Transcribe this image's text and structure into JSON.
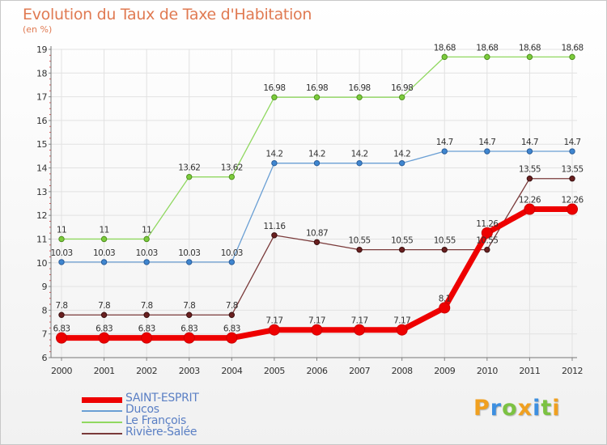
{
  "title": "Evolution du Taux de Taxe d'Habitation",
  "subtitle": "(en %)",
  "logo": {
    "letters": [
      {
        "ch": "P",
        "color": "#f0a020"
      },
      {
        "ch": "r",
        "color": "#3d8fe0"
      },
      {
        "ch": "o",
        "color": "#7cc242"
      },
      {
        "ch": "x",
        "color": "#f0a020"
      },
      {
        "ch": "i",
        "color": "#3d8fe0"
      },
      {
        "ch": "t",
        "color": "#7cc242"
      },
      {
        "ch": "i",
        "color": "#f0a020"
      }
    ]
  },
  "chart_data": {
    "type": "line",
    "title": "Evolution du Taux de Taxe d'Habitation",
    "ylabel": "(en %)",
    "xlabel": "",
    "x": [
      "2000",
      "2001",
      "2002",
      "2003",
      "2004",
      "2005",
      "2006",
      "2007",
      "2008",
      "2009",
      "2010",
      "2011",
      "2012"
    ],
    "ylim": [
      6,
      19
    ],
    "yticks": [
      "6",
      "7",
      "8",
      "9",
      "10",
      "11",
      "12",
      "13",
      "14",
      "15",
      "16",
      "17",
      "18",
      "19"
    ],
    "legend_position": "bottom-left",
    "series": [
      {
        "name": "SAINT-ESPRIT",
        "color": "#ee0000",
        "values": [
          6.83,
          6.83,
          6.83,
          6.83,
          6.83,
          7.17,
          7.17,
          7.17,
          7.17,
          8.1,
          11.26,
          12.26,
          12.26
        ],
        "labels": [
          "6.83",
          "6.83",
          "6.83",
          "6.83",
          "6.83",
          "7.17",
          "7.17",
          "7.17",
          "7.17",
          "8.1",
          "11.26",
          "12.26",
          "12.26"
        ]
      },
      {
        "name": "Ducos",
        "color": "#6a9fd4",
        "values": [
          10.03,
          10.03,
          10.03,
          10.03,
          10.03,
          14.2,
          14.2,
          14.2,
          14.2,
          14.7,
          14.7,
          14.7,
          14.7
        ],
        "labels": [
          "10.03",
          "10.03",
          "10.03",
          "10.03",
          "10.03",
          "14.2",
          "14.2",
          "14.2",
          "14.2",
          "14.7",
          "14.7",
          "14.7",
          "14.7"
        ]
      },
      {
        "name": "Le François",
        "color": "#90d860",
        "values": [
          11,
          11,
          11,
          13.62,
          13.62,
          16.98,
          16.98,
          16.98,
          16.98,
          18.68,
          18.68,
          18.68,
          18.68
        ],
        "labels": [
          "11",
          "11",
          "11",
          "13.62",
          "13.62",
          "16.98",
          "16.98",
          "16.98",
          "16.98",
          "18.68",
          "18.68",
          "18.68",
          "18.68"
        ]
      },
      {
        "name": "Rivière-Salée",
        "color": "#7a3a3a",
        "values": [
          7.8,
          7.8,
          7.8,
          7.8,
          7.8,
          11.16,
          10.87,
          10.55,
          10.55,
          10.55,
          10.55,
          13.55,
          13.55
        ],
        "labels": [
          "7.8",
          "7.8",
          "7.8",
          "7.8",
          "7.8",
          "11.16",
          "10.87",
          "10.55",
          "10.55",
          "10.55",
          "10.55",
          "13.55",
          "13.55"
        ]
      }
    ]
  }
}
